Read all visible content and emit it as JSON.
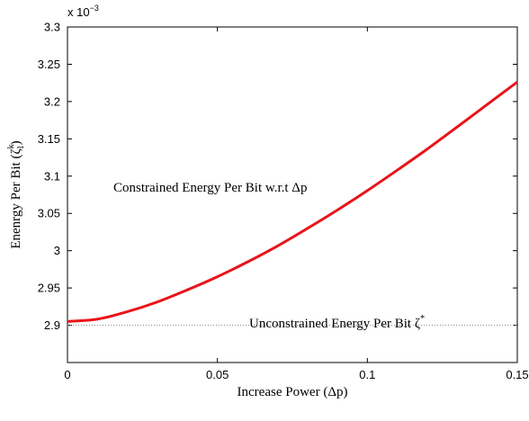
{
  "chart_data": {
    "type": "line",
    "xlabel": "Increase Power (Δp)",
    "ylabel": "Enenrgy Per Bit (ζ",
    "ylabel_sup": "k",
    "ylabel_sub": "1",
    "ylabel_close": ")",
    "exponent_label": "x 10",
    "exponent_power": "−3",
    "xlim": [
      0,
      0.15
    ],
    "ylim": [
      2.85,
      3.3
    ],
    "x_ticks": [
      0,
      0.05,
      0.1,
      0.15
    ],
    "x_tick_labels": [
      "0",
      "0.05",
      "0.1",
      "0.15"
    ],
    "y_ticks": [
      2.9,
      2.95,
      3.0,
      3.05,
      3.1,
      3.15,
      3.2,
      3.25,
      3.3
    ],
    "y_tick_labels": [
      "2.9",
      "2.95",
      "3",
      "3.05",
      "3.1",
      "3.15",
      "3.2",
      "3.25",
      "3.3"
    ],
    "grid": false,
    "series": [
      {
        "label": "Constrained Energy Per Bit w.r.t Δp",
        "color": "#e8141a",
        "style": "solid",
        "x": [
          0,
          0.01,
          0.02,
          0.03,
          0.04,
          0.05,
          0.06,
          0.07,
          0.08,
          0.09,
          0.1,
          0.11,
          0.12,
          0.13,
          0.14,
          0.15
        ],
        "y": [
          2.905,
          2.9082,
          2.9182,
          2.9313,
          2.9475,
          2.9651,
          2.9848,
          3.0062,
          3.0298,
          3.0545,
          3.0806,
          3.1081,
          3.1364,
          3.1661,
          3.1962,
          3.2262
        ]
      },
      {
        "label": "Unconstrained Energy Per Bit ζ",
        "label_sup": "*",
        "color": "#8a8a8a",
        "style": "dotted",
        "x": [
          0,
          0.15
        ],
        "y": [
          2.9,
          2.9
        ]
      }
    ]
  }
}
